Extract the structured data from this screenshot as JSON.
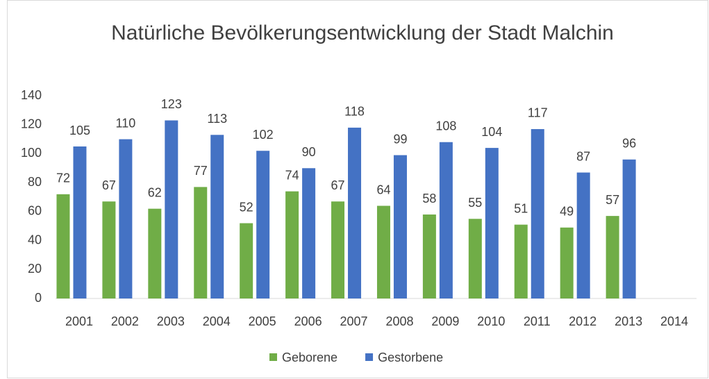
{
  "chart_data": {
    "type": "bar",
    "title": "Natürliche Bevölkerungsentwicklung der Stadt Malchin",
    "categories": [
      "2001",
      "2002",
      "2003",
      "2004",
      "2005",
      "2006",
      "2007",
      "2008",
      "2009",
      "2010",
      "2011",
      "2012",
      "2013",
      "2014"
    ],
    "series": [
      {
        "name": "Geborene",
        "color": "#70ad47",
        "values": [
          72,
          67,
          62,
          77,
          52,
          74,
          67,
          64,
          58,
          55,
          51,
          49,
          57,
          null
        ]
      },
      {
        "name": "Gestorbene",
        "color": "#4472c4",
        "values": [
          105,
          110,
          123,
          113,
          102,
          90,
          118,
          99,
          108,
          104,
          117,
          87,
          96,
          null
        ]
      }
    ],
    "ylim": [
      0,
      140
    ],
    "yticks": [
      0,
      20,
      40,
      60,
      80,
      100,
      120,
      140
    ],
    "grid": false,
    "legend": "bottom"
  }
}
